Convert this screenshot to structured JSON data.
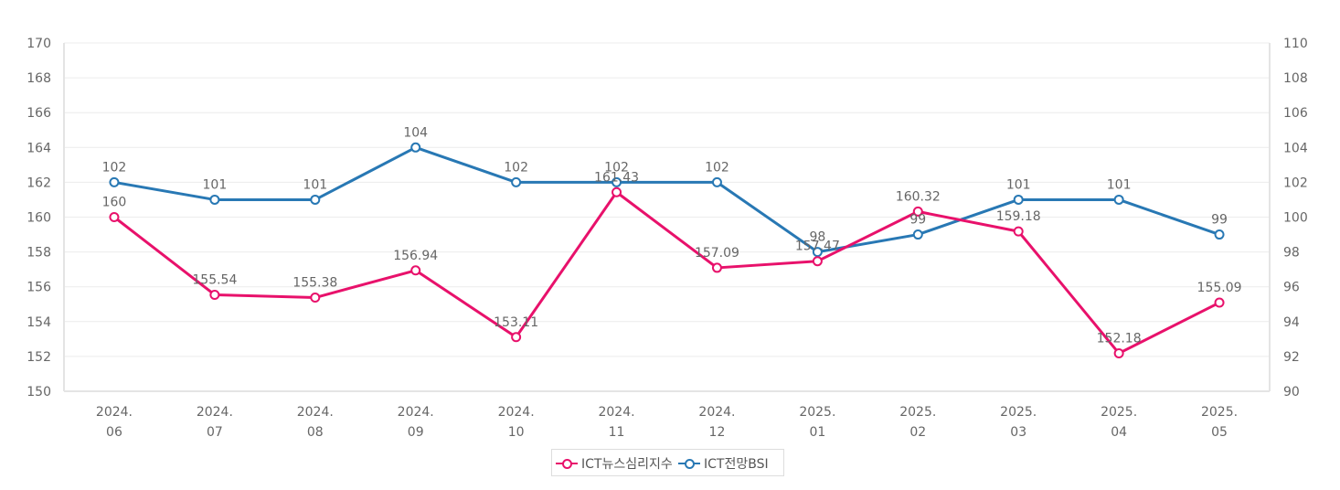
{
  "chart_data": {
    "type": "line",
    "categories": [
      [
        "2024.",
        "06"
      ],
      [
        "2024.",
        "07"
      ],
      [
        "2024.",
        "08"
      ],
      [
        "2024.",
        "09"
      ],
      [
        "2024.",
        "10"
      ],
      [
        "2024.",
        "11"
      ],
      [
        "2024.",
        "12"
      ],
      [
        "2025.",
        "01"
      ],
      [
        "2025.",
        "02"
      ],
      [
        "2025.",
        "03"
      ],
      [
        "2025.",
        "04"
      ],
      [
        "2025.",
        "05"
      ]
    ],
    "series": [
      {
        "name": "ICT뉴스심리지수",
        "axis": "left",
        "color": "#e8116b",
        "values": [
          160,
          155.54,
          155.38,
          156.94,
          153.11,
          161.43,
          157.09,
          157.47,
          160.32,
          159.18,
          152.18,
          155.09
        ],
        "labels": [
          "160",
          "155.54",
          "155.38",
          "156.94",
          "153.11",
          "161.43",
          "157.09",
          "157.47",
          "160.32",
          "159.18",
          "152.18",
          "155.09"
        ]
      },
      {
        "name": "ICT전망BSI",
        "axis": "right",
        "color": "#2878b4",
        "values": [
          102,
          101,
          101,
          104,
          102,
          102,
          102,
          98,
          99,
          101,
          101,
          99
        ],
        "labels": [
          "102",
          "101",
          "101",
          "104",
          "102",
          "102",
          "102",
          "98",
          "99",
          "101",
          "101",
          "99"
        ]
      }
    ],
    "y_left": {
      "min": 150,
      "max": 170,
      "step": 2
    },
    "y_right": {
      "min": 90,
      "max": 110,
      "step": 2
    },
    "grid": true,
    "legend_position": "bottom-center"
  }
}
